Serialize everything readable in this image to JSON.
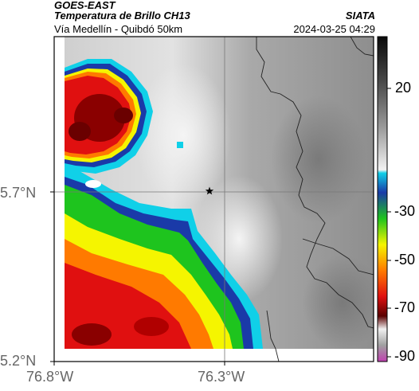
{
  "header": {
    "satellite": "GOES-EAST",
    "product": "Temperatura de Brillo CH13",
    "area": "Vía Medellín - Quibdó 50km",
    "organization": "SIATA",
    "timestamp": "2024-03-25 04:29"
  },
  "map": {
    "lat_ticks": [
      "5.7°N",
      "5.2°N"
    ],
    "lon_ticks": [
      "76.8°W",
      "76.3°W"
    ],
    "marker_icon": "star-icon"
  },
  "colorbar": {
    "ticks": [
      "20",
      "-30",
      "-50",
      "-70",
      "-90"
    ],
    "colors": {
      "dark_red": "#5a0000",
      "red": "#e01010",
      "orange": "#ff7a00",
      "yellow": "#f5f500",
      "green": "#1ec41e",
      "blue": "#1a3aa8",
      "cyan": "#10d0e8",
      "magenta": "#c040b0"
    }
  }
}
